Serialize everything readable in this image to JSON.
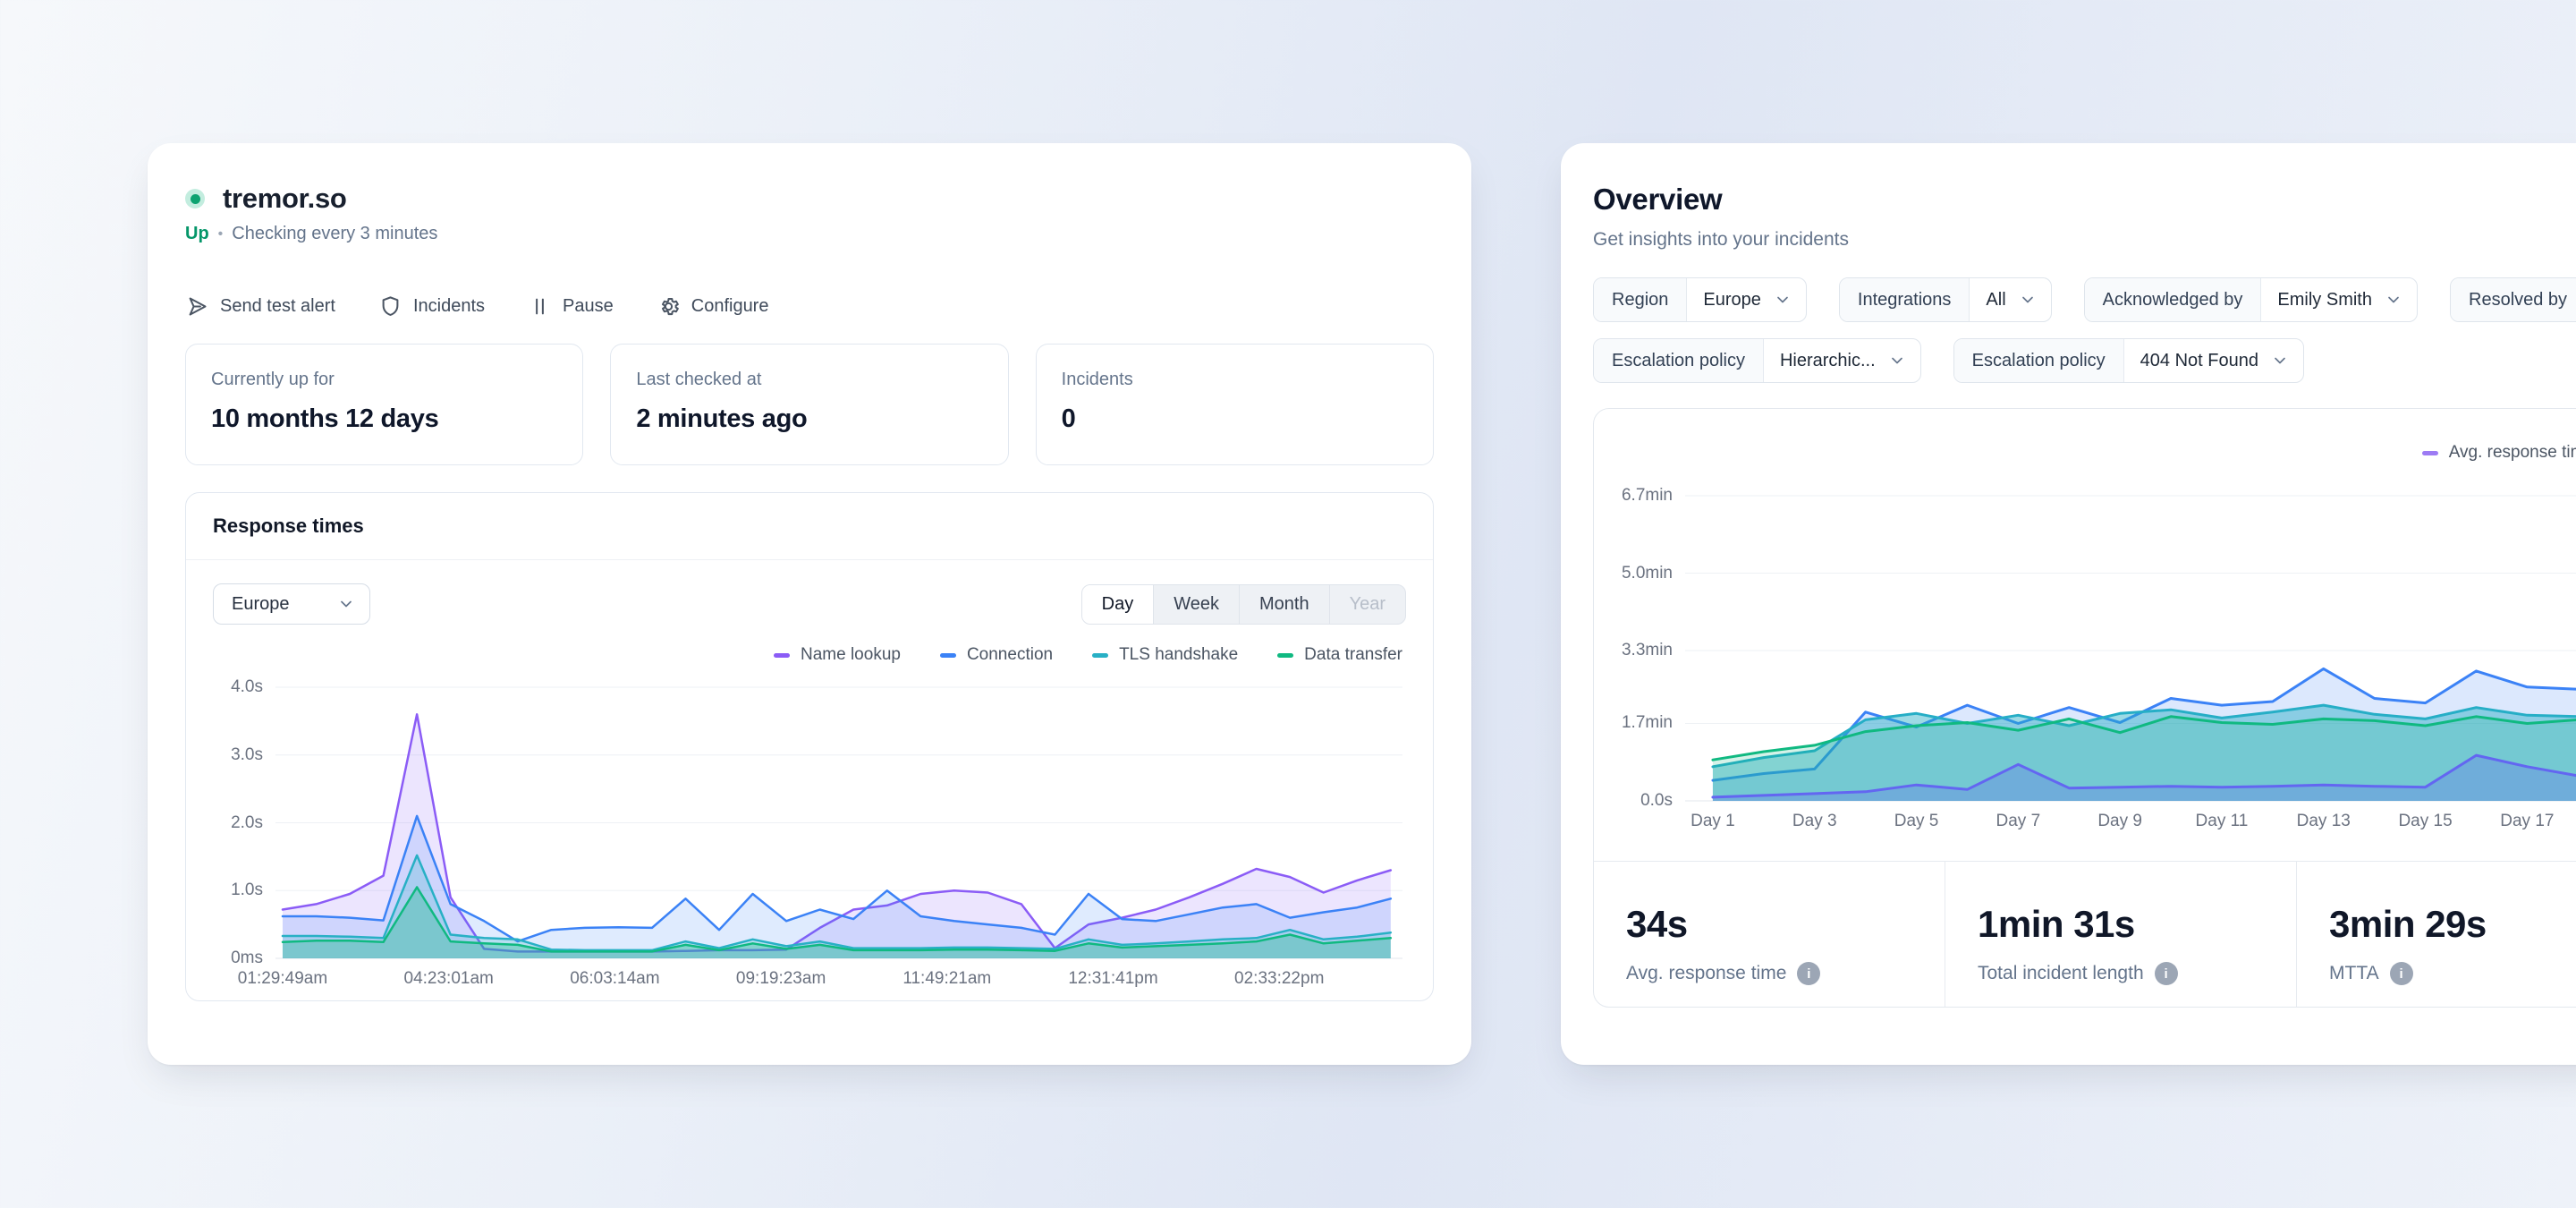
{
  "monitor_card": {
    "title": "tremor.so",
    "status": {
      "state": "Up",
      "bullet": "•",
      "detail": "Checking every 3 minutes",
      "dot_color": "#0ea371"
    },
    "actions": [
      {
        "icon": "send-icon",
        "label": "Send test alert"
      },
      {
        "icon": "shield-icon",
        "label": "Incidents"
      },
      {
        "icon": "pause-icon",
        "label": "Pause"
      },
      {
        "icon": "gear-icon",
        "label": "Configure"
      }
    ],
    "stats": [
      {
        "label": "Currently up for",
        "value": "10 months 12 days"
      },
      {
        "label": "Last checked at",
        "value": "2 minutes ago"
      },
      {
        "label": "Incidents",
        "value": "0"
      }
    ],
    "response_times": {
      "title": "Response times",
      "region_select": {
        "value": "Europe"
      },
      "range_tabs": [
        {
          "label": "Day",
          "state": "active"
        },
        {
          "label": "Week",
          "state": "normal"
        },
        {
          "label": "Month",
          "state": "normal"
        },
        {
          "label": "Year",
          "state": "disabled"
        }
      ]
    }
  },
  "overview_card": {
    "title": "Overview",
    "subtitle": "Get insights into your incidents",
    "filters_row1": [
      {
        "label": "Region",
        "value": "Europe"
      },
      {
        "label": "Integrations",
        "value": "All"
      },
      {
        "label": "Acknowledged by",
        "value": "Emily Smith"
      },
      {
        "label": "Resolved by",
        "value": ""
      }
    ],
    "filters_row2": [
      {
        "label": "Escalation policy",
        "value": "Hierarchic..."
      },
      {
        "label": "Escalation policy",
        "value": "404 Not Found"
      }
    ],
    "stats": [
      {
        "value": "34s",
        "label": "Avg. response time"
      },
      {
        "value": "1min 31s",
        "label": "Total incident length"
      },
      {
        "value": "3min 29s",
        "label": "MTTA"
      }
    ]
  },
  "chart_data": [
    {
      "id": "response-times",
      "type": "area",
      "title": "Response times",
      "x_axis": {
        "ticks": [
          "01:29:49am",
          "04:23:01am",
          "06:03:14am",
          "09:19:23am",
          "11:49:21am",
          "12:31:41pm",
          "02:33:22pm"
        ]
      },
      "y_axis": {
        "unit": "seconds",
        "max": 4.0,
        "ticks": [
          {
            "label": "0ms",
            "value": 0
          },
          {
            "label": "1.0s",
            "value": 1
          },
          {
            "label": "2.0s",
            "value": 2
          },
          {
            "label": "3.0s",
            "value": 3
          },
          {
            "label": "4.0s",
            "value": 4
          }
        ]
      },
      "series": [
        {
          "name": "Name lookup",
          "color": "#8b5cf6",
          "fill": "rgba(139,92,246,0.16)",
          "values": [
            0.72,
            0.8,
            0.95,
            1.22,
            3.6,
            0.9,
            0.14,
            0.1,
            0.1,
            0.1,
            0.1,
            0.1,
            0.11,
            0.12,
            0.12,
            0.13,
            0.45,
            0.72,
            0.78,
            0.95,
            1.0,
            0.97,
            0.8,
            0.15,
            0.5,
            0.6,
            0.72,
            0.9,
            1.1,
            1.32,
            1.2,
            0.97,
            1.15,
            1.3
          ]
        },
        {
          "name": "Connection",
          "color": "#3b82f6",
          "fill": "rgba(59,130,246,0.16)",
          "values": [
            0.62,
            0.62,
            0.6,
            0.56,
            2.1,
            0.8,
            0.55,
            0.25,
            0.42,
            0.45,
            0.46,
            0.45,
            0.88,
            0.42,
            0.95,
            0.55,
            0.72,
            0.58,
            1.0,
            0.62,
            0.55,
            0.5,
            0.45,
            0.35,
            0.95,
            0.58,
            0.55,
            0.65,
            0.75,
            0.8,
            0.6,
            0.68,
            0.75,
            0.88
          ]
        },
        {
          "name": "TLS handshake",
          "color": "#28b0c5",
          "fill": "rgba(40,176,197,0.22)",
          "values": [
            0.33,
            0.33,
            0.32,
            0.3,
            1.52,
            0.35,
            0.3,
            0.28,
            0.13,
            0.12,
            0.12,
            0.12,
            0.25,
            0.15,
            0.28,
            0.18,
            0.25,
            0.15,
            0.15,
            0.15,
            0.16,
            0.16,
            0.15,
            0.14,
            0.28,
            0.2,
            0.22,
            0.25,
            0.28,
            0.3,
            0.42,
            0.28,
            0.32,
            0.38
          ]
        },
        {
          "name": "Data transfer",
          "color": "#10b981",
          "fill": "rgba(16,185,129,0.30)",
          "values": [
            0.24,
            0.26,
            0.26,
            0.24,
            1.05,
            0.25,
            0.22,
            0.2,
            0.1,
            0.1,
            0.1,
            0.1,
            0.2,
            0.12,
            0.22,
            0.14,
            0.2,
            0.12,
            0.12,
            0.12,
            0.13,
            0.13,
            0.12,
            0.11,
            0.22,
            0.16,
            0.18,
            0.2,
            0.22,
            0.25,
            0.35,
            0.22,
            0.26,
            0.3
          ]
        }
      ]
    },
    {
      "id": "incidents-overview",
      "type": "area",
      "legend_swatch_color": "#9d7bf4",
      "x_axis": {
        "ticks": [
          "Day 1",
          "Day 3",
          "Day 5",
          "Day 7",
          "Day 9",
          "Day 11",
          "Day 13",
          "Day 15",
          "Day 17"
        ]
      },
      "y_axis": {
        "unit": "minutes",
        "max": 6.7,
        "ticks": [
          {
            "label": "0.0s",
            "value": 0
          },
          {
            "label": "1.7min",
            "value": 1.7
          },
          {
            "label": "3.3min",
            "value": 3.3
          },
          {
            "label": "5.0min",
            "value": 5.0
          },
          {
            "label": "6.7min",
            "value": 6.7
          }
        ]
      },
      "series": [
        {
          "name": "",
          "color": "#3b82f6",
          "fill": "rgba(59,130,246,0.18)",
          "values": [
            0.45,
            0.6,
            0.7,
            1.95,
            1.62,
            2.1,
            1.7,
            2.05,
            1.72,
            2.25,
            2.1,
            2.18,
            2.9,
            2.25,
            2.15,
            2.85,
            2.5,
            2.45
          ]
        },
        {
          "name": "",
          "color": "#26aec6",
          "fill": "rgba(38,174,198,0.45)",
          "values": [
            0.75,
            0.95,
            1.1,
            1.78,
            1.92,
            1.7,
            1.88,
            1.65,
            1.92,
            2.0,
            1.82,
            1.95,
            2.1,
            1.9,
            1.8,
            2.05,
            1.88,
            1.85
          ]
        },
        {
          "name": "",
          "color": "#10b981",
          "fill": "rgba(16,185,129,0.18)",
          "values": [
            0.9,
            1.08,
            1.22,
            1.52,
            1.65,
            1.72,
            1.55,
            1.8,
            1.5,
            1.85,
            1.72,
            1.68,
            1.8,
            1.76,
            1.65,
            1.85,
            1.7,
            1.78
          ]
        },
        {
          "name": "Avg. response time",
          "color": "#6366f1",
          "fill": "rgba(99,102,241,0.28)",
          "values": [
            0.08,
            0.12,
            0.16,
            0.2,
            0.35,
            0.25,
            0.8,
            0.28,
            0.3,
            0.32,
            0.3,
            0.32,
            0.35,
            0.32,
            0.3,
            1.0,
            0.75,
            0.55
          ]
        }
      ]
    }
  ]
}
